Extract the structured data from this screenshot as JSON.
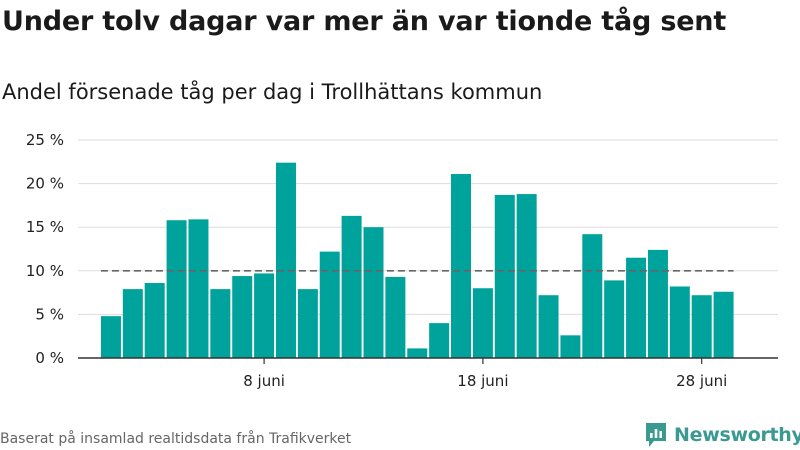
{
  "title": "Under tolv dagar var mer än var tionde tåg sent",
  "subtitle": "Andel försenade tåg per dag i Trollhättans kommun",
  "footer": {
    "source": "Baserat på insamlad realtidsdata från Trafikverket"
  },
  "brand": {
    "name": "Newsworthy",
    "icon": "newsworthy-logo-icon",
    "color": "#3a9a92"
  },
  "colors": {
    "bar": "#00a39b",
    "reference_line": "#666666",
    "grid": "#dddddd",
    "axis": "#333333"
  },
  "chart_data": {
    "type": "bar",
    "x": [
      1,
      2,
      3,
      4,
      5,
      6,
      7,
      8,
      9,
      10,
      11,
      12,
      13,
      14,
      15,
      16,
      17,
      18,
      19,
      20,
      21,
      22,
      23,
      24,
      25,
      26,
      27,
      28,
      29
    ],
    "values": [
      4.8,
      7.9,
      8.6,
      15.8,
      15.9,
      7.9,
      9.4,
      9.7,
      22.4,
      7.9,
      12.2,
      16.3,
      15.0,
      9.3,
      1.1,
      4.0,
      21.1,
      8.0,
      18.7,
      18.8,
      7.2,
      2.6,
      14.2,
      8.9,
      11.5,
      12.4,
      8.2,
      7.2,
      7.6
    ],
    "reference_line": 10,
    "ylim": [
      0,
      25
    ],
    "yticks": [
      0,
      5,
      10,
      15,
      20,
      25
    ],
    "ytick_labels": [
      "0 %",
      "5 %",
      "10 %",
      "15 %",
      "20 %",
      "25 %"
    ],
    "xticks": [
      8,
      18,
      28
    ],
    "xtick_labels": [
      "8 juni",
      "18 juni",
      "28 juni"
    ],
    "grid": true,
    "xlabel": "",
    "ylabel": ""
  }
}
